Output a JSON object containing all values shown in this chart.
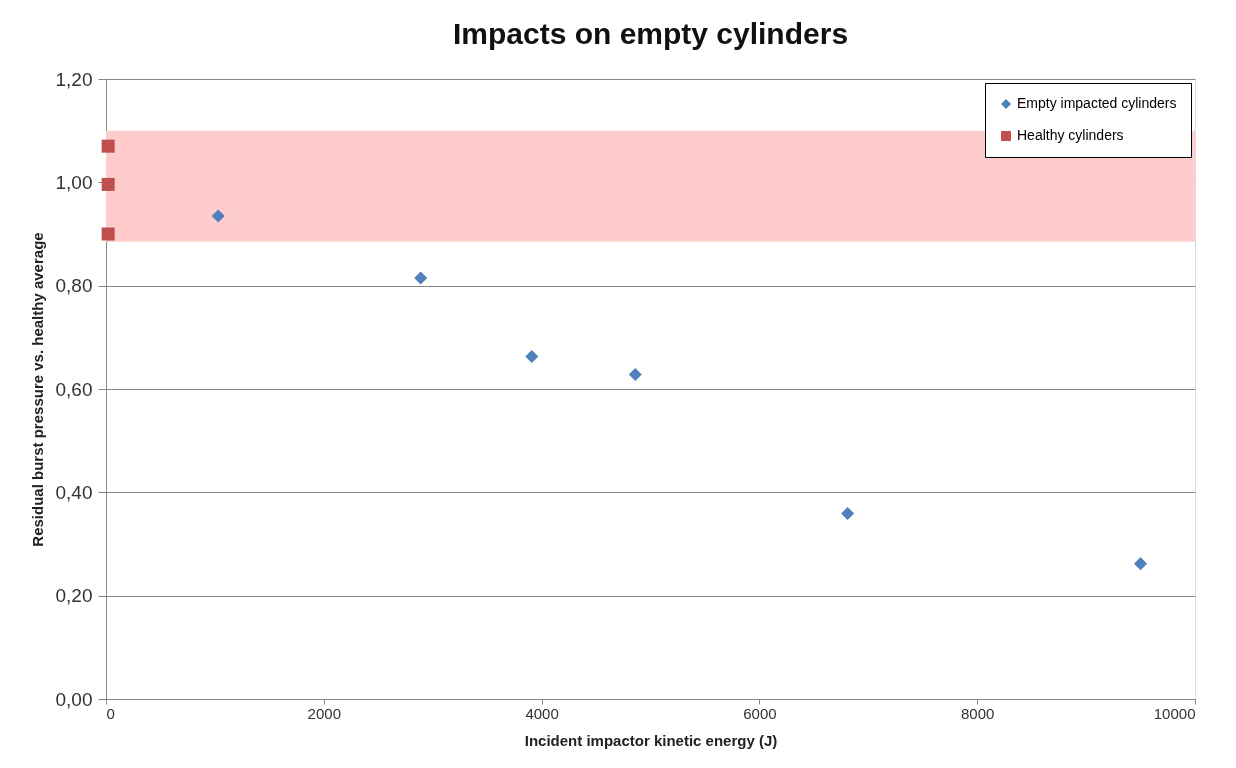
{
  "chart_data": {
    "type": "scatter",
    "title": "Impacts on empty cylinders",
    "xlabel": "Incident  impactor kinetic energy (J)",
    "ylabel": "Residual burst pressure vs. healthy average",
    "series": [
      {
        "name": "Empty impacted cylinders",
        "color": "#4f81bd",
        "marker": "diamond",
        "x": [
          1030,
          2890,
          3910,
          4860,
          6810,
          9500
        ],
        "values": [
          0.935,
          0.815,
          0.663,
          0.628,
          0.359,
          0.262
        ]
      },
      {
        "name": "Healthy cylinders",
        "color": "#c0504d",
        "marker": "square",
        "x": [
          20,
          20,
          20
        ],
        "values": [
          1.07,
          0.996,
          0.9
        ]
      }
    ],
    "bands": [
      {
        "axis": "y",
        "from": 0.885,
        "to": 1.1,
        "color": "#ffcccc"
      }
    ],
    "xlim": [
      0,
      10000
    ],
    "xticks": [
      0,
      2000,
      4000,
      6000,
      8000,
      10000
    ],
    "ylim": [
      0,
      1.2
    ],
    "yticks": [
      {
        "value": 0,
        "label": "0,00"
      },
      {
        "value": 0.2,
        "label": "0,20"
      },
      {
        "value": 0.4,
        "label": "0,40"
      },
      {
        "value": 0.6,
        "label": "0,60"
      },
      {
        "value": 0.8,
        "label": "0,80"
      },
      {
        "value": 1.0,
        "label": "1,00"
      },
      {
        "value": 1.2,
        "label": "1,20"
      }
    ],
    "grid": "y",
    "legend": "top right"
  }
}
